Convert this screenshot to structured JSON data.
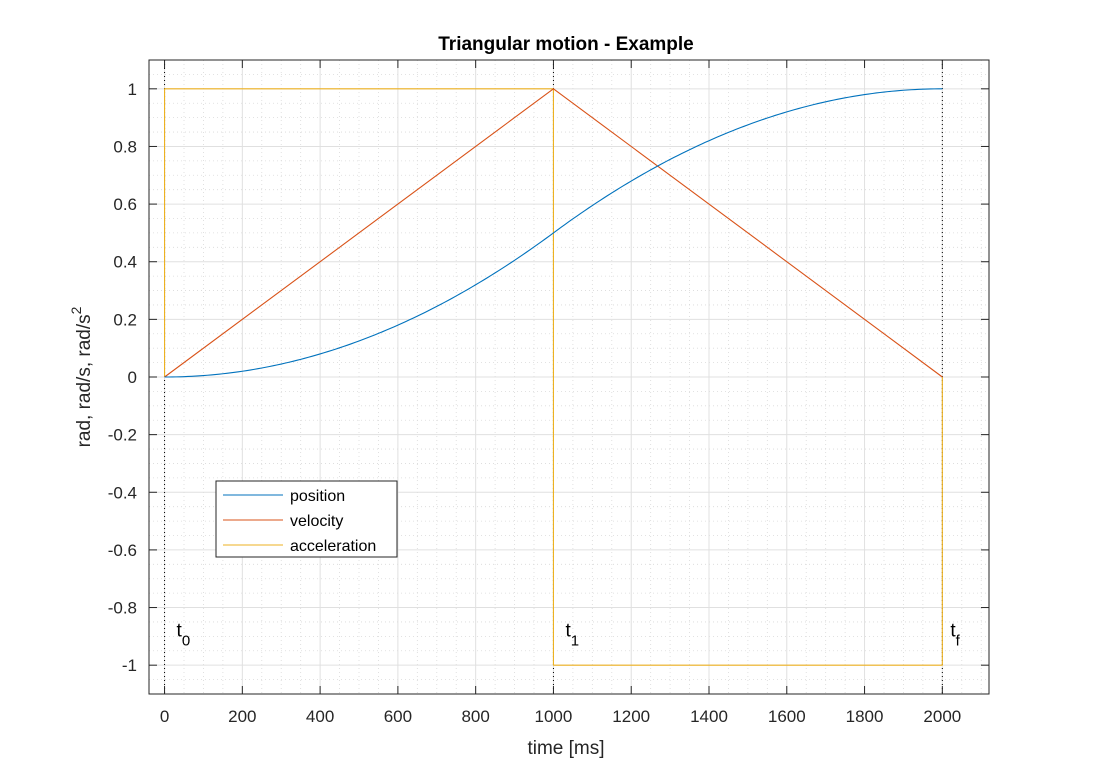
{
  "chart_data": {
    "type": "line",
    "title": "Triangular motion - Example",
    "xlabel": "time [ms]",
    "ylabel": {
      "main": "rad, rad/s, rad/s",
      "sup": "2"
    },
    "xlim": [
      -40,
      2120
    ],
    "ylim": [
      -1.1,
      1.1
    ],
    "x_ticks": [
      0,
      200,
      400,
      600,
      800,
      1000,
      1200,
      1400,
      1600,
      1800,
      2000
    ],
    "x_tick_labels": [
      "0",
      "200",
      "400",
      "600",
      "800",
      "1000",
      "1200",
      "1400",
      "1600",
      "1800",
      "2000"
    ],
    "y_ticks": [
      1,
      0.8,
      0.6,
      0.4,
      0.2,
      0,
      -0.2,
      -0.4,
      -0.6,
      -0.8,
      -1
    ],
    "y_tick_labels": [
      "1",
      "0.8",
      "0.6",
      "0.4",
      "0.2",
      "0",
      "-0.2",
      "-0.4",
      "-0.6",
      "-0.8",
      "-1"
    ],
    "grid": true,
    "minor_grid": true,
    "legend_position": "lower-left",
    "series": [
      {
        "name": "position",
        "color": "#0072BD",
        "x": [
          0,
          100,
          200,
          300,
          400,
          500,
          600,
          700,
          800,
          900,
          1000,
          1100,
          1200,
          1300,
          1400,
          1500,
          1600,
          1700,
          1800,
          1900,
          2000
        ],
        "values": [
          0,
          0.005,
          0.02,
          0.045,
          0.08,
          0.125,
          0.18,
          0.245,
          0.32,
          0.405,
          0.5,
          0.595,
          0.68,
          0.755,
          0.82,
          0.875,
          0.92,
          0.955,
          0.98,
          0.995,
          1
        ]
      },
      {
        "name": "velocity",
        "color": "#D95319",
        "x": [
          0,
          1000,
          2000
        ],
        "values": [
          0,
          1,
          0
        ]
      },
      {
        "name": "acceleration",
        "color": "#EDB120",
        "x": [
          0,
          0,
          1000,
          1000,
          2000,
          2000
        ],
        "values": [
          0,
          1,
          1,
          -1,
          -1,
          0
        ]
      }
    ],
    "markers": [
      {
        "x": 0,
        "label": "t",
        "sub": "0"
      },
      {
        "x": 1000,
        "label": "t",
        "sub": "1"
      },
      {
        "x": 2000,
        "label": "t",
        "sub": "f"
      }
    ]
  }
}
